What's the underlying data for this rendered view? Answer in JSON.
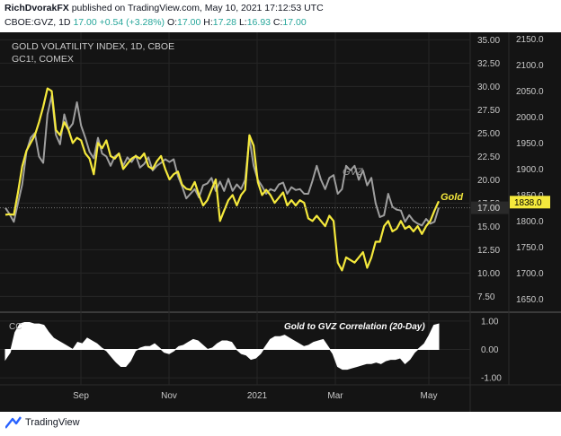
{
  "header": {
    "author": "RichDvorakFX",
    "published": "published on TradingView.com, May 10, 2021 17:12:53 UTC",
    "symbol": "CBOE:GVZ, 1D",
    "last": "17.00",
    "change": "+0.54 (+3.28%)",
    "ohlc": {
      "o_label": "O:",
      "o": "17.00",
      "h_label": "H:",
      "h": "17.28",
      "l_label": "L:",
      "l": "16.93",
      "c_label": "C:",
      "c": "17.00"
    }
  },
  "footer": {
    "brand": "TradingView"
  },
  "colors": {
    "gold": "#f5e93c",
    "gvz": "#9e9e9e",
    "cc": "#ffffff",
    "bg": "#141414",
    "grid": "#262626",
    "text": "#c9c9c9",
    "bullish": "#26a69a"
  },
  "chart_data": [
    {
      "type": "line",
      "title": "GOLD VOLATILITY INDEX, 1D, CBOE",
      "subtitle": "GC1!, COMEX",
      "x_labels": [
        "Sep",
        "Nov",
        "2021",
        "Mar",
        "May"
      ],
      "right_axis": {
        "ticks": [
          "35.00",
          "32.50",
          "30.00",
          "27.50",
          "25.00",
          "22.50",
          "20.00",
          "17.50",
          "15.00",
          "12.50",
          "10.00",
          "7.50"
        ],
        "ylim": [
          6.0,
          35.8
        ]
      },
      "gold_axis": {
        "ticks": [
          "2150.0",
          "2100.0",
          "2050.0",
          "2000.0",
          "1950.0",
          "1900.0",
          "1850.0",
          "1800.0",
          "1750.0",
          "1700.0",
          "1650.0"
        ],
        "ylim": [
          1628,
          2163
        ]
      },
      "last_value_labels": {
        "gvz": "17.00",
        "gold": "1838.0"
      },
      "annotations": [
        {
          "text": "GVZ"
        },
        {
          "text": "Gold"
        }
      ],
      "series": [
        {
          "name": "GVZ",
          "axis": "right",
          "values": [
            17.0,
            16.3,
            15.5,
            17.5,
            19.5,
            23.0,
            24.5,
            25.0,
            22.5,
            21.8,
            27.0,
            29.0,
            24.8,
            23.8,
            27.0,
            25.4,
            26.0,
            28.3,
            25.8,
            24.5,
            23.0,
            22.3,
            24.5,
            22.8,
            22.5,
            21.5,
            22.5,
            22.8,
            21.5,
            22.4,
            21.9,
            22.6,
            21.3,
            21.7,
            22.4,
            21.0,
            21.5,
            21.8,
            22.2,
            21.9,
            22.2,
            20.4,
            19.3,
            18.0,
            18.5,
            19.0,
            18.1,
            19.4,
            19.6,
            20.2,
            18.8,
            19.8,
            18.8,
            20.1,
            18.8,
            19.5,
            19.0,
            20.0,
            24.5,
            21.5,
            20.0,
            19.3,
            18.5,
            19.0,
            18.8,
            19.5,
            19.7,
            18.5,
            19.2,
            18.9,
            19.0,
            18.5,
            18.5,
            19.9,
            21.5,
            20.0,
            19.0,
            20.2,
            20.5,
            18.5,
            19.0,
            21.5,
            21.0,
            21.5,
            20.0,
            21.0,
            19.4,
            20.2,
            17.5,
            16.0,
            16.2,
            18.5,
            17.1,
            16.8,
            16.7,
            15.5,
            16.2,
            15.6,
            15.3,
            15.1,
            15.8,
            15.3,
            15.5,
            17.0
          ]
        },
        {
          "name": "Gold",
          "axis": "left",
          "values": [
            1812,
            1813,
            1812,
            1855,
            1905,
            1935,
            1950,
            1965,
            1990,
            2020,
            2055,
            2050,
            1975,
            1965,
            1990,
            1975,
            1950,
            1960,
            1955,
            1930,
            1920,
            1890,
            1950,
            1940,
            1955,
            1925,
            1920,
            1930,
            1900,
            1910,
            1920,
            1925,
            1920,
            1930,
            1905,
            1900,
            1915,
            1925,
            1900,
            1880,
            1890,
            1895,
            1870,
            1862,
            1860,
            1875,
            1850,
            1830,
            1840,
            1860,
            1880,
            1800,
            1820,
            1840,
            1850,
            1830,
            1850,
            1860,
            1965,
            1945,
            1875,
            1850,
            1860,
            1850,
            1835,
            1845,
            1855,
            1830,
            1840,
            1830,
            1840,
            1835,
            1805,
            1800,
            1810,
            1800,
            1790,
            1810,
            1800,
            1720,
            1705,
            1730,
            1725,
            1720,
            1730,
            1740,
            1710,
            1730,
            1760,
            1760,
            1790,
            1800,
            1780,
            1785,
            1800,
            1785,
            1790,
            1780,
            1790,
            1775,
            1790,
            1800,
            1820,
            1838
          ]
        },
        {
          "name": "CC",
          "axis": "cc",
          "ylim": [
            -1.25,
            1.25
          ],
          "values": [
            -0.35,
            -0.1,
            0.6,
            0.9,
            0.95,
            0.95,
            0.9,
            0.9,
            0.85,
            0.6,
            0.4,
            0.3,
            0.2,
            0.1,
            0.0,
            0.25,
            0.2,
            0.4,
            0.3,
            0.2,
            0.05,
            -0.05,
            -0.25,
            -0.45,
            -0.6,
            -0.6,
            -0.4,
            -0.05,
            0.05,
            0.1,
            0.1,
            0.2,
            0.05,
            -0.1,
            -0.15,
            -0.05,
            0.1,
            0.15,
            0.25,
            0.35,
            0.3,
            0.15,
            0.0,
            0.05,
            0.2,
            0.3,
            0.3,
            0.25,
            0.0,
            -0.15,
            -0.2,
            -0.35,
            -0.3,
            -0.15,
            0.1,
            0.35,
            0.45,
            0.45,
            0.5,
            0.4,
            0.3,
            0.2,
            0.1,
            0.15,
            0.25,
            0.3,
            0.35,
            0.1,
            -0.15,
            -0.6,
            -0.7,
            -0.7,
            -0.65,
            -0.6,
            -0.55,
            -0.5,
            -0.5,
            -0.45,
            -0.5,
            -0.4,
            -0.35,
            -0.35,
            -0.3,
            -0.5,
            -0.35,
            -0.1,
            0.05,
            0.2,
            0.5,
            0.85,
            0.9
          ]
        }
      ],
      "cc_panel": {
        "label": "CC",
        "title": "Gold to GVZ Correlation (20-Day)",
        "ticks": [
          "1.00",
          "0.00",
          "-1.00"
        ]
      },
      "grid": true
    }
  ]
}
